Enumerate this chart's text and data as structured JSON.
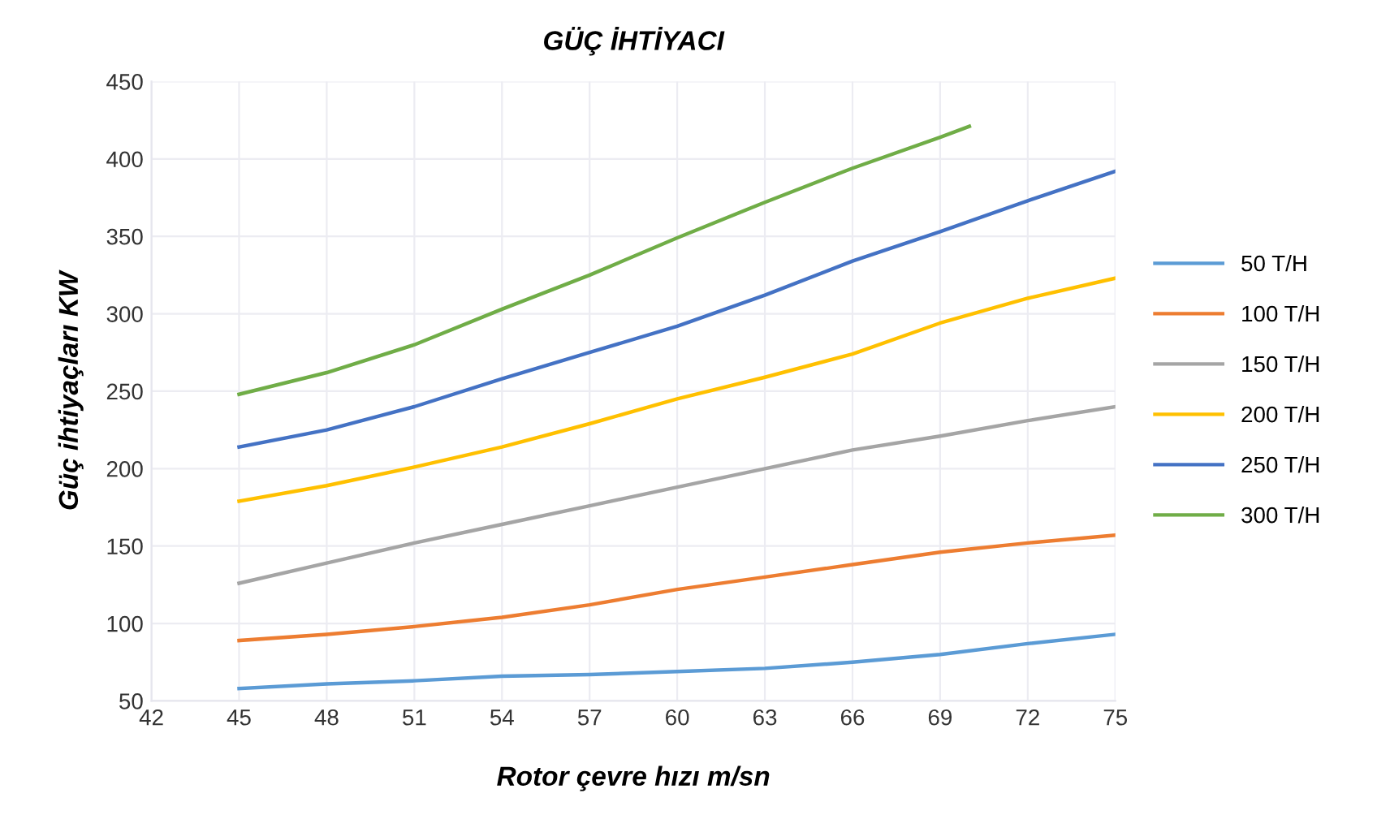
{
  "chart_data": {
    "type": "line",
    "title": "GÜÇ İHTİYACI",
    "xlabel": "Rotor çevre hızı m/sn",
    "ylabel": "Güç ihtiyaçları KW",
    "xlim": [
      42,
      75
    ],
    "xticks": [
      42,
      45,
      48,
      51,
      54,
      57,
      60,
      63,
      66,
      {
        "value": 69,
        "label": "69"
      },
      72,
      75
    ],
    "ylim": [
      50,
      450
    ],
    "yticks": [
      50,
      100,
      150,
      200,
      250,
      300,
      350,
      400,
      450
    ],
    "grid": true,
    "legend": "right",
    "marker": "none",
    "line_style": "solid",
    "series": [
      {
        "name": "50 T/H",
        "color": "#5b9bd5",
        "x": [
          45,
          48,
          51,
          54,
          57,
          60,
          63,
          66,
          69,
          72,
          75
        ],
        "values": [
          58,
          61,
          63,
          66,
          67,
          69,
          71,
          75,
          80,
          87,
          93
        ]
      },
      {
        "name": "100 T/H",
        "color": "#ed7d31",
        "x": [
          45,
          48,
          51,
          54,
          57,
          60,
          63,
          66,
          69,
          72,
          75
        ],
        "values": [
          89,
          93,
          98,
          104,
          112,
          122,
          130,
          138,
          146,
          152,
          157
        ]
      },
      {
        "name": "150 T/H",
        "color": "#a5a5a5",
        "x": [
          45,
          48,
          51,
          54,
          57,
          60,
          63,
          66,
          69,
          72,
          75
        ],
        "values": [
          126,
          139,
          152,
          164,
          176,
          188,
          200,
          212,
          221,
          231,
          240
        ]
      },
      {
        "name": "200 T/H",
        "color": "#ffc000",
        "x": [
          45,
          48,
          51,
          54,
          57,
          60,
          63,
          66,
          69,
          72,
          75
        ],
        "values": [
          179,
          189,
          201,
          214,
          229,
          245,
          259,
          274,
          294,
          310,
          323
        ]
      },
      {
        "name": "250 T/H",
        "color": "#4472c4",
        "x": [
          45,
          48,
          51,
          54,
          57,
          60,
          63,
          66,
          69,
          72,
          75
        ],
        "values": [
          214,
          225,
          240,
          258,
          275,
          292,
          312,
          334,
          353,
          373,
          392
        ]
      },
      {
        "name": "300 T/H",
        "color": "#70ad47",
        "x": [
          45,
          48,
          51,
          54,
          57,
          60,
          63,
          66,
          69,
          70
        ],
        "values": [
          248,
          262,
          280,
          303,
          325,
          349,
          372,
          394,
          414,
          421
        ]
      }
    ]
  }
}
